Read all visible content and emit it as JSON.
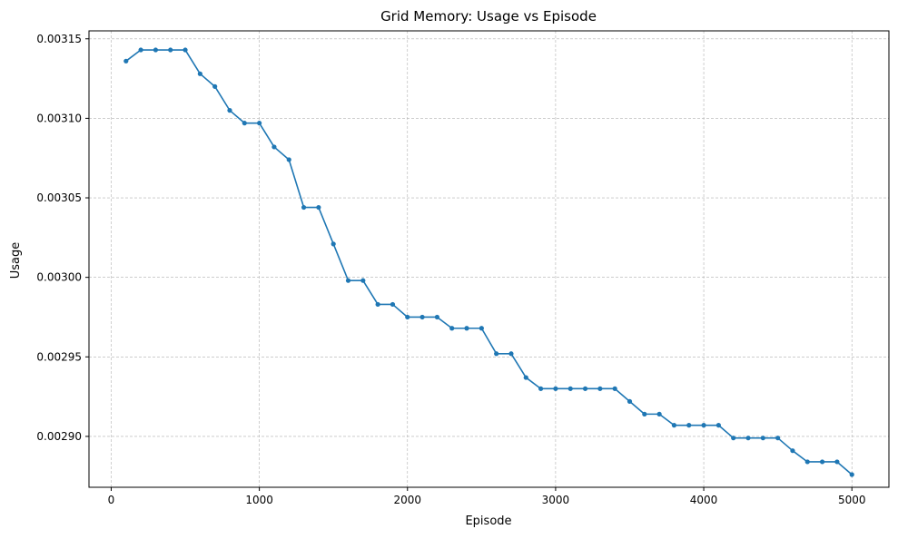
{
  "chart_data": {
    "type": "line",
    "title": "Grid Memory: Usage vs Episode",
    "xlabel": "Episode",
    "ylabel": "Usage",
    "xlim": [
      -150,
      5250
    ],
    "ylim": [
      0.002868,
      0.003155
    ],
    "xticks": [
      0,
      1000,
      2000,
      3000,
      4000,
      5000
    ],
    "xtick_labels": [
      "0",
      "1000",
      "2000",
      "3000",
      "4000",
      "5000"
    ],
    "yticks": [
      0.0029,
      0.00295,
      0.003,
      0.00305,
      0.0031,
      0.00315
    ],
    "ytick_labels": [
      "0.00290",
      "0.00295",
      "0.00300",
      "0.00305",
      "0.00310",
      "0.00315"
    ],
    "grid": true,
    "legend": false,
    "marker": "circle",
    "colors": {
      "line": "#1f77b4",
      "grid": "#b0b0b0",
      "axis": "#000000"
    },
    "series": [
      {
        "x": [
          100,
          200,
          300,
          400,
          500,
          600,
          700,
          800,
          900,
          1000,
          1100,
          1200,
          1300,
          1400,
          1500,
          1600,
          1700,
          1800,
          1900,
          2000,
          2100,
          2200,
          2300,
          2400,
          2500,
          2600,
          2700,
          2800,
          2900,
          3000,
          3100,
          3200,
          3300,
          3400,
          3500,
          3600,
          3700,
          3800,
          3900,
          4000,
          4100,
          4200,
          4300,
          4400,
          4500,
          4600,
          4700,
          4800,
          4900,
          5000
        ],
        "y": [
          0.003136,
          0.003143,
          0.003143,
          0.003143,
          0.003143,
          0.003128,
          0.00312,
          0.003105,
          0.003097,
          0.003097,
          0.003082,
          0.003074,
          0.003044,
          0.003044,
          0.003021,
          0.002998,
          0.002998,
          0.002983,
          0.002983,
          0.002975,
          0.002975,
          0.002975,
          0.002968,
          0.002968,
          0.002968,
          0.002952,
          0.002952,
          0.002937,
          0.00293,
          0.00293,
          0.00293,
          0.00293,
          0.00293,
          0.00293,
          0.002922,
          0.002914,
          0.002914,
          0.002907,
          0.002907,
          0.002907,
          0.002907,
          0.002899,
          0.002899,
          0.002899,
          0.002899,
          0.002891,
          0.002884,
          0.002884,
          0.002884,
          0.002876
        ]
      }
    ]
  }
}
